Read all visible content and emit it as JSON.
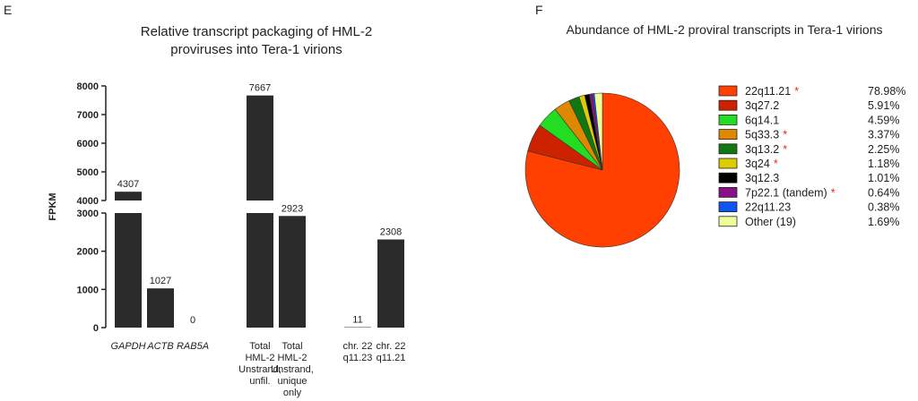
{
  "panels": {
    "left_letter": "E",
    "right_letter": "F"
  },
  "chart_data": [
    {
      "type": "bar",
      "title_lines": [
        "Relative transcript packaging of HML-2",
        "proviruses into Tera-1 virions"
      ],
      "ylabel": "FPKM",
      "axis_break": [
        3000,
        4000
      ],
      "ylim": [
        0,
        8000
      ],
      "lower_ticks": [
        0,
        1000,
        2000,
        3000
      ],
      "upper_ticks": [
        4000,
        5000,
        6000,
        7000,
        8000
      ],
      "categories": [
        {
          "lines": [
            "GAPDH"
          ],
          "italic": true
        },
        {
          "lines": [
            "ACTB"
          ],
          "italic": true
        },
        {
          "lines": [
            "RAB5A"
          ],
          "italic": true
        },
        {
          "lines": [
            "Total",
            "HML-2",
            "Unstrand,",
            "unfil."
          ],
          "italic": false
        },
        {
          "lines": [
            "Total",
            "HML-2",
            "Unstrand,",
            "unique",
            "only"
          ],
          "italic": false
        },
        {
          "lines": [
            "chr. 22",
            "q11.23"
          ],
          "italic": false
        },
        {
          "lines": [
            "chr. 22",
            "q11.21"
          ],
          "italic": false
        }
      ],
      "values": [
        4307,
        1027,
        0,
        7667,
        2923,
        11,
        2308
      ],
      "value_labels": [
        "4307",
        "1027",
        "0",
        "7667",
        "2923",
        "11",
        "2308"
      ],
      "bar_color": "#2b2b2b"
    },
    {
      "type": "pie",
      "title": "Abundance of HML-2 proviral transcripts in Tera-1 virions",
      "legend_position": "right",
      "slices": [
        {
          "label": "22q11.21",
          "value": 78.98,
          "percent": "78.98%",
          "color": "#ff4000",
          "starred": true
        },
        {
          "label": "3q27.2",
          "value": 5.91,
          "percent": "5.91%",
          "color": "#cc2200",
          "starred": false
        },
        {
          "label": "6q14.1",
          "value": 4.59,
          "percent": "4.59%",
          "color": "#22dd22",
          "starred": false
        },
        {
          "label": "5q33.3",
          "value": 3.37,
          "percent": "3.37%",
          "color": "#dd8800",
          "starred": true
        },
        {
          "label": "3q13.2",
          "value": 2.25,
          "percent": "2.25%",
          "color": "#117711",
          "starred": true
        },
        {
          "label": "3q24",
          "value": 1.18,
          "percent": "1.18%",
          "color": "#ddcc00",
          "starred": true
        },
        {
          "label": "3q12.3",
          "value": 1.01,
          "percent": "1.01%",
          "color": "#000000",
          "starred": false
        },
        {
          "label": "7p22.1 (tandem)",
          "value": 0.64,
          "percent": "0.64%",
          "color": "#881188",
          "starred": true
        },
        {
          "label": "22q11.23",
          "value": 0.38,
          "percent": "0.38%",
          "color": "#1155ee",
          "starred": false
        },
        {
          "label": "Other (19)",
          "value": 1.69,
          "percent": "1.69%",
          "color": "#eeff99",
          "starred": false
        }
      ],
      "star_symbol": "*",
      "star_color": "#ee2222"
    }
  ]
}
